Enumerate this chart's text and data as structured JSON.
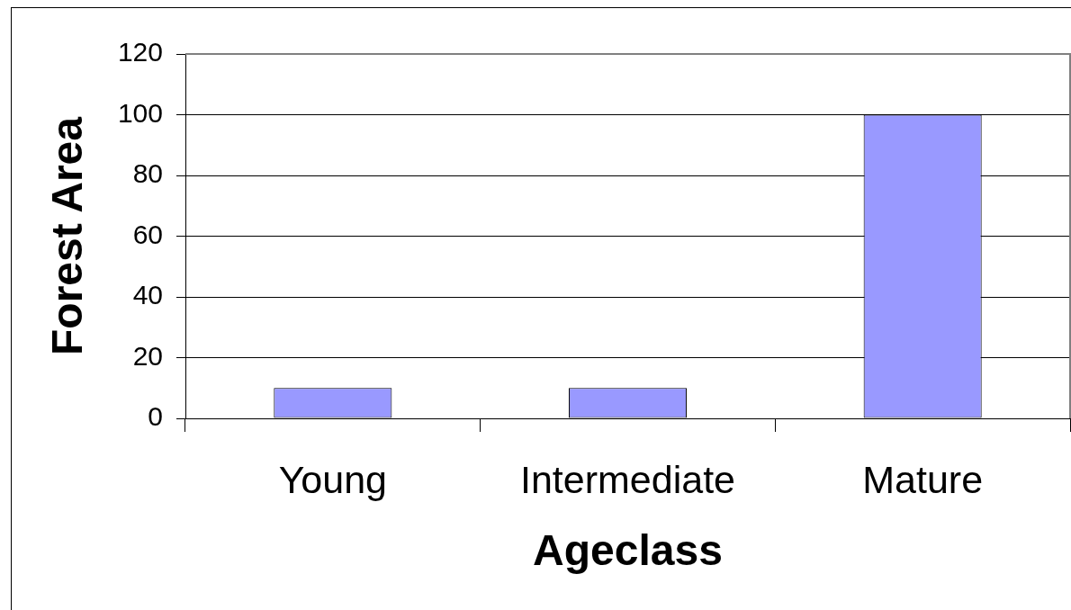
{
  "chart_data": {
    "type": "bar",
    "xlabel": "Ageclass",
    "ylabel": "Forest Area",
    "categories": [
      "Young",
      "Intermediate",
      "Mature"
    ],
    "values": [
      10,
      10,
      100
    ],
    "color": "#9999ff",
    "ylim": [
      0,
      120
    ],
    "yticks": [
      0,
      20,
      40,
      60,
      80,
      100,
      120
    ],
    "grid": "y"
  }
}
